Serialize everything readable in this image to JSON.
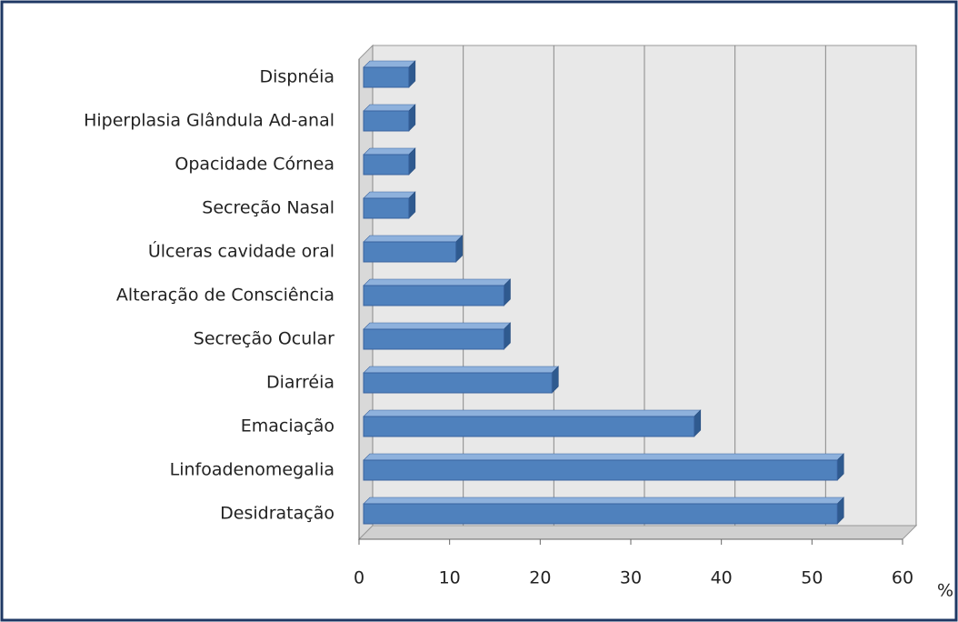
{
  "chart_data": {
    "type": "bar",
    "orientation": "horizontal",
    "categories": [
      "Dispnéia",
      "Hiperplasia Glândula Ad-anal",
      "Opacidade Córnea",
      "Secreção Nasal",
      "Úlceras cavidade oral",
      "Alteração de Consciência",
      "Secreção Ocular",
      "Diarréia",
      "Emaciação",
      "Linfoadenomegalia",
      "Desidratação"
    ],
    "values": [
      5.3,
      5.3,
      5.3,
      5.3,
      10.5,
      15.8,
      15.8,
      21.1,
      36.8,
      52.6,
      52.6
    ],
    "color": "#4f81bd",
    "xlim": [
      0,
      60
    ],
    "xticks": [
      0,
      10,
      20,
      30,
      40,
      50,
      60
    ],
    "xlabel": "%",
    "grid": true
  }
}
